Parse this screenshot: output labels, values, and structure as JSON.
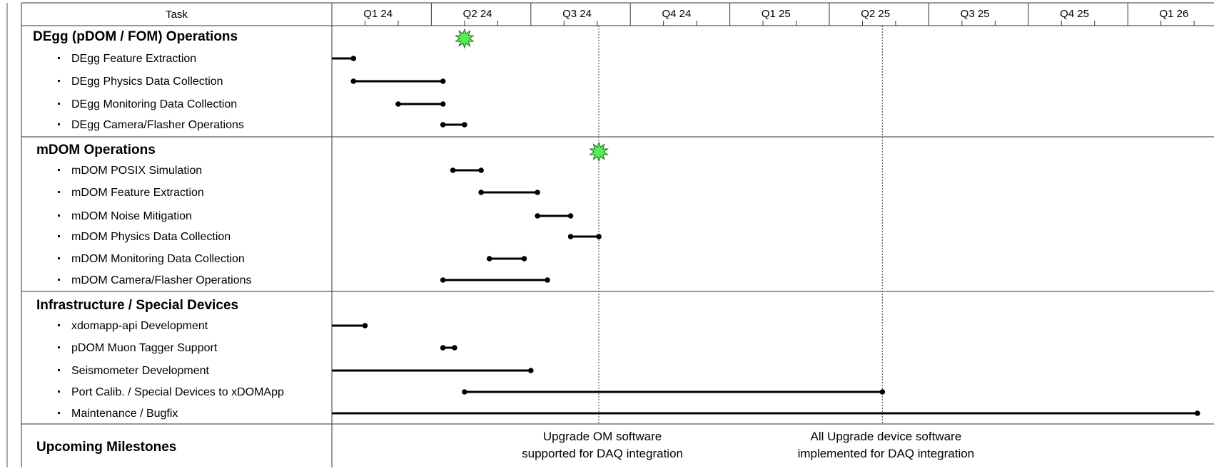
{
  "chart_data": {
    "type": "gantt",
    "header": {
      "task_label": "Task",
      "quarters": [
        "Q1 24",
        "Q2 24",
        "Q3 24",
        "Q4 24",
        "Q1 25",
        "Q2 25",
        "Q3 25",
        "Q4 25",
        "Q1 26"
      ]
    },
    "x_unit": "month index (0 = start of Jan 2024)",
    "x_range": [
      0,
      27
    ],
    "groups": [
      {
        "name": "DEgg (pDOM / FOM) Operations",
        "milestone": 4.0,
        "tasks": [
          {
            "name": "DEgg Feature Extraction",
            "start": 0.0,
            "end": 0.65
          },
          {
            "name": "DEgg Physics Data Collection",
            "start": 0.65,
            "end": 3.35
          },
          {
            "name": "DEgg Monitoring Data Collection",
            "start": 2.0,
            "end": 3.35
          },
          {
            "name": "DEgg Camera/Flasher Operations",
            "start": 3.35,
            "end": 4.0
          }
        ]
      },
      {
        "name": "mDOM Operations",
        "milestone": 8.05,
        "tasks": [
          {
            "name": "mDOM POSIX Simulation",
            "start": 3.65,
            "end": 4.5
          },
          {
            "name": "mDOM Feature Extraction",
            "start": 4.5,
            "end": 6.2
          },
          {
            "name": "mDOM Noise Mitigation",
            "start": 6.2,
            "end": 7.2
          },
          {
            "name": "mDOM Physics Data Collection",
            "start": 7.2,
            "end": 8.05
          },
          {
            "name": "mDOM Monitoring Data Collection",
            "start": 4.75,
            "end": 5.8
          },
          {
            "name": "mDOM Camera/Flasher Operations",
            "start": 3.35,
            "end": 6.5
          }
        ]
      },
      {
        "name": "Infrastructure / Special Devices",
        "tasks": [
          {
            "name": "xdomapp-api Development",
            "start": 0.0,
            "end": 1.0
          },
          {
            "name": "pDOM Muon Tagger Support",
            "start": 3.35,
            "end": 3.7
          },
          {
            "name": "Seismometer Development",
            "start": 0.0,
            "end": 6.0
          },
          {
            "name": "Port Calib. / Special Devices to xDOMApp",
            "start": 4.0,
            "end": 16.6
          },
          {
            "name": "Maintenance / Bugfix",
            "start": 0.0,
            "end": 26.1
          }
        ]
      }
    ],
    "milestones_row": {
      "label": "Upcoming Milestones",
      "items": [
        {
          "at": 8.05,
          "lines": [
            "Upgrade OM software",
            "supported for DAQ integration"
          ]
        },
        {
          "at": 16.6,
          "lines": [
            "All Upgrade device software",
            "implemented for DAQ integration"
          ]
        }
      ]
    },
    "colors": {
      "milestone_fill": "#55ee55",
      "bar": "#000000",
      "grid": "#444444"
    }
  }
}
